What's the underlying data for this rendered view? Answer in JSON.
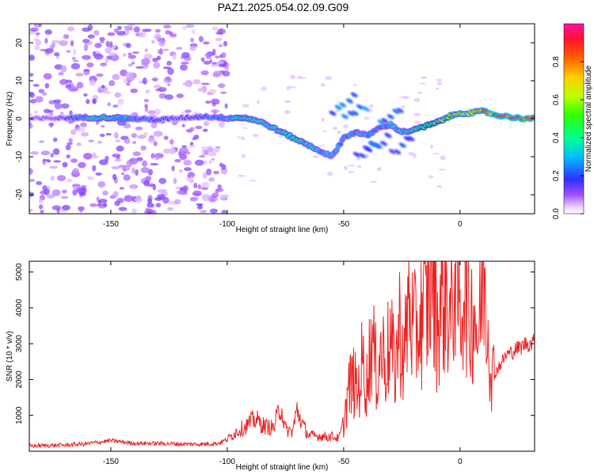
{
  "title": "PAZ1.2025.054.02.09.G09",
  "colors": {
    "line": "#ee2222",
    "ridge_low": "#7a00ff",
    "ridge_high": "#ff2020",
    "speckle": "#b070ff"
  },
  "chart_data": [
    {
      "type": "heatmap",
      "panel": "spectrogram",
      "xlabel": "Height of straight line (km)",
      "ylabel": "Frequency (Hz)",
      "xlim": [
        -185,
        32
      ],
      "ylim": [
        -25,
        25
      ],
      "xticks": [
        -150,
        -100,
        -50,
        0
      ],
      "yticks": [
        -20,
        -10,
        0,
        10,
        20
      ],
      "colorbar": {
        "label": "Normalized spectral amplitude",
        "ticks": [
          0.0,
          0.2,
          0.4,
          0.6,
          0.8
        ],
        "range": [
          0,
          1
        ],
        "colormap": "rainbow-magenta"
      },
      "ridge": [
        {
          "h": -185,
          "f": 0.0,
          "a": 0.1
        },
        {
          "h": -170,
          "f": 0.2,
          "a": 0.15
        },
        {
          "h": -160,
          "f": 0.3,
          "a": 0.3
        },
        {
          "h": -150,
          "f": 0.3,
          "a": 0.4
        },
        {
          "h": -140,
          "f": 0.0,
          "a": 0.25
        },
        {
          "h": -130,
          "f": -0.3,
          "a": 0.2
        },
        {
          "h": -120,
          "f": 0.2,
          "a": 0.15
        },
        {
          "h": -110,
          "f": 0.6,
          "a": 0.2
        },
        {
          "h": -100,
          "f": 0.2,
          "a": 0.3
        },
        {
          "h": -95,
          "f": 0.3,
          "a": 0.4
        },
        {
          "h": -90,
          "f": 0.0,
          "a": 0.4
        },
        {
          "h": -85,
          "f": -1.0,
          "a": 0.35
        },
        {
          "h": -80,
          "f": -2.5,
          "a": 0.35
        },
        {
          "h": -75,
          "f": -4.0,
          "a": 0.4
        },
        {
          "h": -70,
          "f": -5.5,
          "a": 0.4
        },
        {
          "h": -65,
          "f": -7.0,
          "a": 0.35
        },
        {
          "h": -60,
          "f": -8.5,
          "a": 0.3
        },
        {
          "h": -55,
          "f": -10.0,
          "a": 0.3
        },
        {
          "h": -50,
          "f": -5.0,
          "a": 0.25
        },
        {
          "h": -45,
          "f": -3.5,
          "a": 0.3
        },
        {
          "h": -40,
          "f": -4.5,
          "a": 0.3
        },
        {
          "h": -35,
          "f": -2.5,
          "a": 0.25
        },
        {
          "h": -30,
          "f": -1.5,
          "a": 0.3
        },
        {
          "h": -25,
          "f": -3.5,
          "a": 0.35
        },
        {
          "h": -20,
          "f": -3.0,
          "a": 0.4
        },
        {
          "h": -15,
          "f": -2.0,
          "a": 0.5
        },
        {
          "h": -10,
          "f": -1.0,
          "a": 0.5
        },
        {
          "h": -5,
          "f": 0.5,
          "a": 0.6
        },
        {
          "h": 0,
          "f": 1.5,
          "a": 0.7
        },
        {
          "h": 5,
          "f": 1.5,
          "a": 0.7
        },
        {
          "h": 10,
          "f": 2.0,
          "a": 0.75
        },
        {
          "h": 15,
          "f": 1.0,
          "a": 0.9
        },
        {
          "h": 20,
          "f": 0.6,
          "a": 0.9
        },
        {
          "h": 25,
          "f": 0.2,
          "a": 0.95
        },
        {
          "h": 32,
          "f": 0.0,
          "a": 0.95
        }
      ],
      "secondary_streaks": [
        {
          "h": -50,
          "f": 3.5,
          "a": 0.25
        },
        {
          "h": -45,
          "f": 1.5,
          "a": 0.25
        },
        {
          "h": -40,
          "f": -8.0,
          "a": 0.2
        },
        {
          "h": -35,
          "f": -6.5,
          "a": 0.25
        },
        {
          "h": -30,
          "f": 1.0,
          "a": 0.25
        },
        {
          "h": -25,
          "f": -7.0,
          "a": 0.2
        }
      ]
    },
    {
      "type": "line",
      "panel": "snr",
      "xlabel": "Height of straight line (km)",
      "ylabel": "SNR (10 * v/v)",
      "xlim": [
        -185,
        32
      ],
      "ylim": [
        0,
        5300
      ],
      "xticks": [
        -150,
        -100,
        -50,
        0
      ],
      "yticks": [
        1000,
        2000,
        3000,
        4000,
        5000
      ],
      "series": [
        {
          "x": [
            -185,
            -170,
            -160,
            -150,
            -140,
            -130,
            -120,
            -110,
            -104,
            -100,
            -96,
            -92,
            -88,
            -84,
            -80,
            -77,
            -75,
            -72,
            -70,
            -67,
            -65,
            -62,
            -60,
            -57,
            -55,
            -52,
            -50,
            -48,
            -46,
            -44,
            -42,
            -40,
            -38,
            -36,
            -34,
            -32,
            -30,
            -28,
            -26,
            -24,
            -22,
            -20,
            -18,
            -16,
            -14,
            -12,
            -10,
            -8,
            -6,
            -4,
            -2,
            0,
            2,
            4,
            6,
            8,
            10,
            12,
            14,
            16,
            18,
            20,
            22,
            24,
            26,
            28,
            30,
            32
          ],
          "y": [
            150,
            170,
            210,
            300,
            220,
            220,
            200,
            200,
            220,
            330,
            550,
            700,
            900,
            700,
            650,
            1300,
            600,
            550,
            1150,
            650,
            450,
            420,
            430,
            400,
            420,
            350,
            800,
            1700,
            2000,
            1600,
            2500,
            1900,
            3200,
            2200,
            2800,
            2600,
            3000,
            2300,
            3500,
            2500,
            4300,
            3200,
            3500,
            3800,
            4000,
            5200,
            3600,
            4200,
            4500,
            3500,
            5300,
            3700,
            5000,
            3600,
            4100,
            3000,
            5300,
            3500,
            2100,
            2300,
            2500,
            2700,
            2750,
            2850,
            2900,
            3000,
            3000,
            3050
          ]
        }
      ]
    }
  ]
}
